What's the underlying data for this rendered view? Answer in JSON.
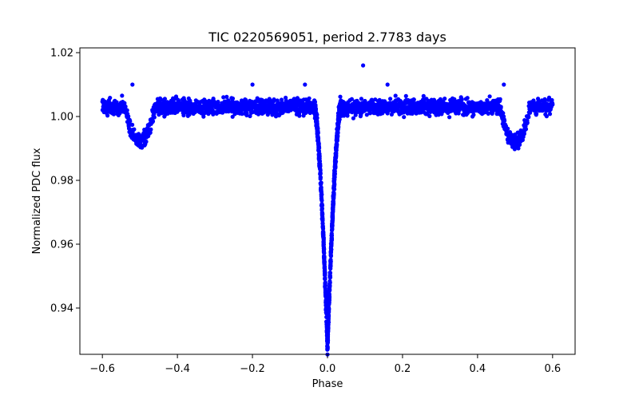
{
  "chart_data": {
    "type": "scatter",
    "title": "TIC 0220569051, period 2.7783 days",
    "xlabel": "Phase",
    "ylabel": "Normalized PDC flux",
    "xlim": [
      -0.66,
      0.66
    ],
    "ylim": [
      0.9255,
      1.0215
    ],
    "xticks": [
      -0.6,
      -0.4,
      -0.2,
      0.0,
      0.2,
      0.4,
      0.6
    ],
    "xtick_labels": [
      "−0.6",
      "−0.4",
      "−0.2",
      "0.0",
      "0.2",
      "0.4",
      "0.6"
    ],
    "yticks": [
      0.94,
      0.96,
      0.98,
      1.0,
      1.02
    ],
    "ytick_labels": [
      "0.94",
      "0.96",
      "0.98",
      "1.00",
      "1.02"
    ],
    "grid": false,
    "marker_color": "#0000ff",
    "series": [
      {
        "name": "PDC flux",
        "phase_range": [
          -0.6,
          0.6
        ],
        "baseline_flux": 1.003,
        "scatter_amplitude": 0.003,
        "primary_eclipse": {
          "phase": 0.0,
          "min_flux": 0.928,
          "half_width": 0.035
        },
        "secondary_eclipses": [
          {
            "phase": -0.5,
            "min_flux": 0.992,
            "half_width": 0.04
          },
          {
            "phase": 0.5,
            "min_flux": 0.992,
            "half_width": 0.04
          }
        ],
        "outliers": [
          {
            "x": 0.095,
            "y": 1.016
          },
          {
            "x": 0.16,
            "y": 1.01
          },
          {
            "x": -0.52,
            "y": 1.01
          },
          {
            "x": 0.47,
            "y": 1.01
          },
          {
            "x": -0.2,
            "y": 1.01
          },
          {
            "x": -0.06,
            "y": 1.01
          }
        ]
      }
    ]
  }
}
